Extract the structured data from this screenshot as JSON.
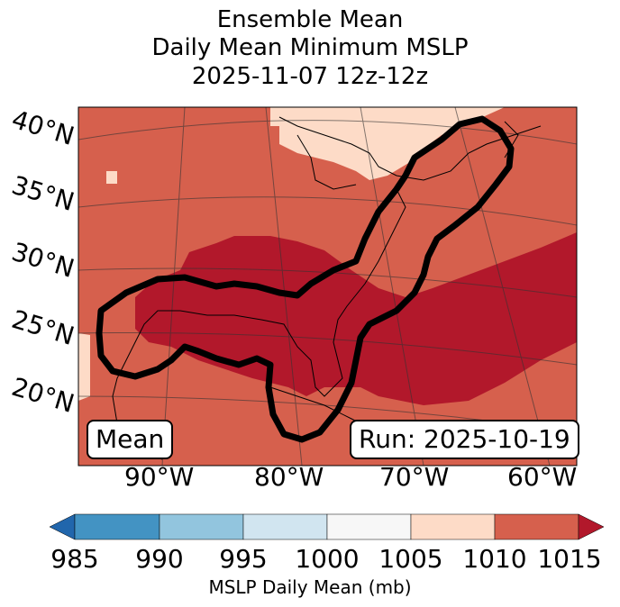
{
  "title": {
    "line1": "Ensemble Mean",
    "line2": "Daily Mean Minimum MSLP",
    "line3": "2025-11-07 12z-12z"
  },
  "map": {
    "lat_labels": [
      "40°N",
      "35°N",
      "30°N",
      "25°N",
      "20°N"
    ],
    "lon_labels": [
      "90°W",
      "80°W",
      "70°W",
      "60°W"
    ],
    "mean_box": "Mean",
    "run_box": "Run: 2025-10-19"
  },
  "colorbar": {
    "label": "MSLP Daily Mean (mb)",
    "ticks": [
      "985",
      "990",
      "995",
      "1000",
      "1005",
      "1010",
      "1015"
    ],
    "colors": {
      "under": "#2166ac",
      "985_990": "#4393c3",
      "990_995": "#92c5de",
      "995_1000": "#d1e5f0",
      "1000_1005": "#f7f7f7",
      "1005_1010": "#fddbc7",
      "1010_1015": "#d6604d",
      "over": "#b2182b"
    }
  }
}
